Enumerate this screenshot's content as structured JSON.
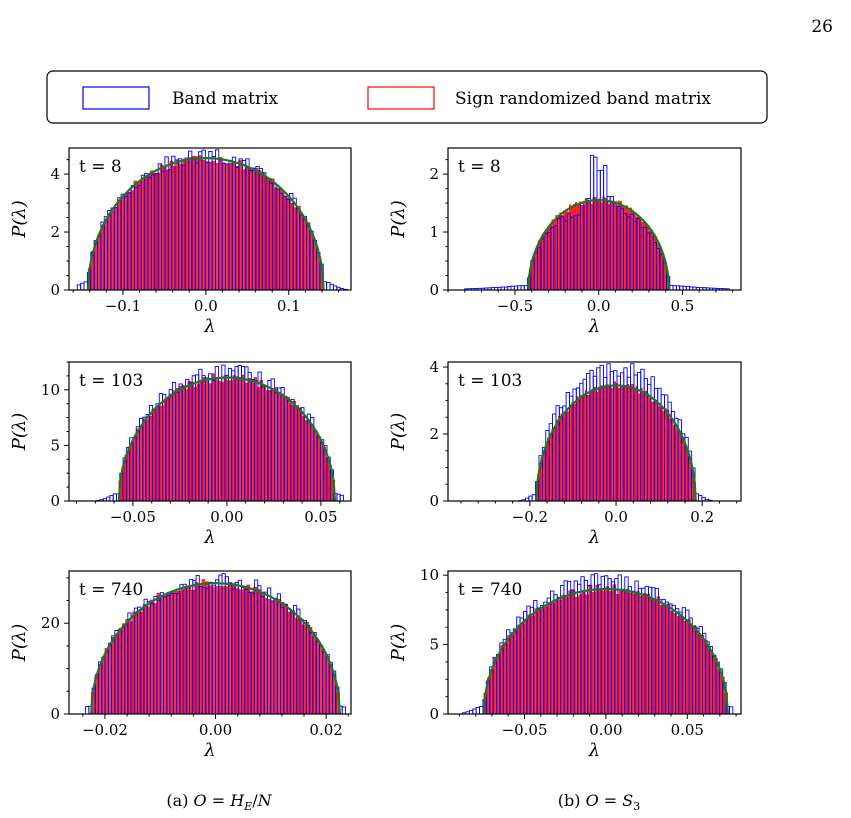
{
  "page_number": "26",
  "legend": {
    "items": [
      {
        "label": "Band matrix",
        "color": "#0000ff",
        "fill": "none"
      },
      {
        "label": "Sign randomized band matrix",
        "color": "#ff0000",
        "fill": "#ff0000"
      }
    ]
  },
  "colors": {
    "band": "#0000ff",
    "sign": "#ff0000",
    "semicircle": "#1a7a1a"
  },
  "captions": [
    "(a) O = H_E/N",
    "(b) O = S_3"
  ],
  "chart_data": [
    {
      "type": "bar",
      "column": "a",
      "t_label": "t = 8",
      "xlabel": "λ",
      "ylabel": "P(λ)",
      "xlim": [
        -0.165,
        0.175
      ],
      "ylim": [
        0,
        4.9
      ],
      "xticks": [
        -0.1,
        0.0,
        0.1
      ],
      "xtick_labels": [
        "−0.1",
        "0.0",
        "0.1"
      ],
      "yticks": [
        0,
        2,
        4
      ],
      "ytick_labels": [
        "0",
        "2",
        "4"
      ],
      "semicircle": {
        "R": 0.142,
        "peak": 4.55
      },
      "band_range": [
        -0.155,
        0.17
      ],
      "band_peak": 4.6
    },
    {
      "type": "bar",
      "column": "b",
      "t_label": "t = 8",
      "xlabel": "λ",
      "ylabel": "P(λ)",
      "xlim": [
        -0.9,
        0.85
      ],
      "ylim": [
        0,
        2.45
      ],
      "xticks": [
        -0.5,
        0.0,
        0.5
      ],
      "xtick_labels": [
        "−0.5",
        "0.0",
        "0.5"
      ],
      "yticks": [
        0,
        1,
        2
      ],
      "ytick_labels": [
        "0",
        "1",
        "2"
      ],
      "semicircle": {
        "R": 0.42,
        "peak": 1.55
      },
      "band_range": [
        -0.8,
        0.78
      ],
      "band_peak": 2.35
    },
    {
      "type": "bar",
      "column": "a",
      "t_label": "t = 103",
      "xlabel": "λ",
      "ylabel": "P(λ)",
      "xlim": [
        -0.084,
        0.066
      ],
      "ylim": [
        0,
        12.5
      ],
      "xticks": [
        -0.05,
        0.0,
        0.05
      ],
      "xtick_labels": [
        "−0.05",
        "0.00",
        "0.05"
      ],
      "yticks": [
        0,
        5,
        10
      ],
      "ytick_labels": [
        "0",
        "5",
        "10"
      ],
      "semicircle": {
        "R": 0.0575,
        "peak": 11.1
      },
      "band_range": [
        -0.078,
        0.062
      ],
      "band_peak": 11.6
    },
    {
      "type": "bar",
      "column": "b",
      "t_label": "t = 103",
      "xlabel": "λ",
      "ylabel": "P(λ)",
      "xlim": [
        -0.39,
        0.29
      ],
      "ylim": [
        0,
        4.15
      ],
      "xticks": [
        -0.2,
        0.0,
        0.2
      ],
      "xtick_labels": [
        "−0.2",
        "0.0",
        "0.2"
      ],
      "yticks": [
        0,
        2,
        4
      ],
      "ytick_labels": [
        "0",
        "2",
        "4"
      ],
      "semicircle": {
        "R": 0.185,
        "peak": 3.45
      },
      "band_range": [
        -0.36,
        0.27
      ],
      "band_peak": 3.95
    },
    {
      "type": "bar",
      "column": "a",
      "t_label": "t = 740",
      "xlabel": "λ",
      "ylabel": "P(λ)",
      "xlim": [
        -0.0265,
        0.0245
      ],
      "ylim": [
        0,
        31.5
      ],
      "xticks": [
        -0.02,
        0.0,
        0.02
      ],
      "xtick_labels": [
        "−0.02",
        "0.00",
        "0.02"
      ],
      "yticks": [
        0,
        20
      ],
      "ytick_labels": [
        "0",
        "20"
      ],
      "semicircle": {
        "R": 0.0225,
        "peak": 28.8
      },
      "band_range": [
        -0.0235,
        0.0235
      ],
      "band_peak": 29.5
    },
    {
      "type": "bar",
      "column": "b",
      "t_label": "t = 740",
      "xlabel": "λ",
      "ylabel": "P(λ)",
      "xlim": [
        -0.097,
        0.083
      ],
      "ylim": [
        0,
        10.3
      ],
      "xticks": [
        -0.05,
        0.0,
        0.05
      ],
      "xtick_labels": [
        "−0.05",
        "0.00",
        "0.05"
      ],
      "yticks": [
        0,
        5,
        10
      ],
      "ytick_labels": [
        "0",
        "5",
        "10"
      ],
      "semicircle": {
        "R": 0.075,
        "peak": 9.0
      },
      "band_range": [
        -0.088,
        0.078
      ],
      "band_peak": 9.6
    }
  ]
}
